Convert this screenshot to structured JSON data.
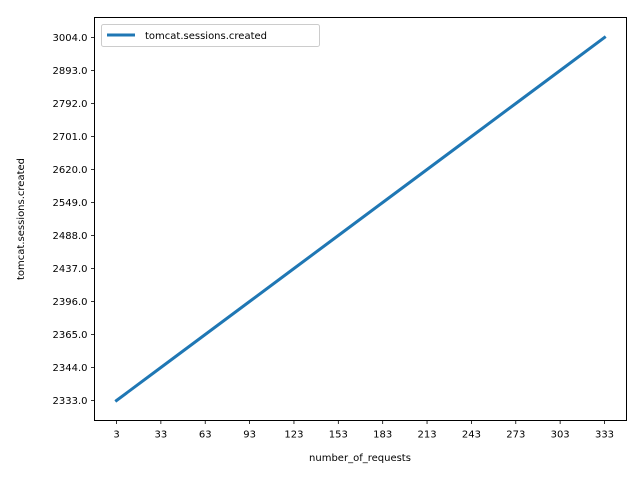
{
  "chart_data": {
    "type": "line",
    "title": "",
    "xlabel": "number_of_requests",
    "ylabel": "tomcat.sessions.created",
    "categories": [
      "3",
      "33",
      "63",
      "93",
      "123",
      "153",
      "183",
      "213",
      "243",
      "273",
      "303",
      "333"
    ],
    "y_tick_labels": [
      "2333.0",
      "2344.0",
      "2365.0",
      "2396.0",
      "2437.0",
      "2488.0",
      "2549.0",
      "2620.0",
      "2701.0",
      "2792.0",
      "2893.0",
      "3004.0"
    ],
    "y_scale": "categorical",
    "series": [
      {
        "name": "tomcat.sessions.created",
        "color": "#1f77b4",
        "values": [
          2333.0,
          2344.0,
          2365.0,
          2396.0,
          2437.0,
          2488.0,
          2549.0,
          2620.0,
          2701.0,
          2792.0,
          2893.0,
          3004.0
        ]
      }
    ],
    "legend": "top-left",
    "grid": false
  }
}
